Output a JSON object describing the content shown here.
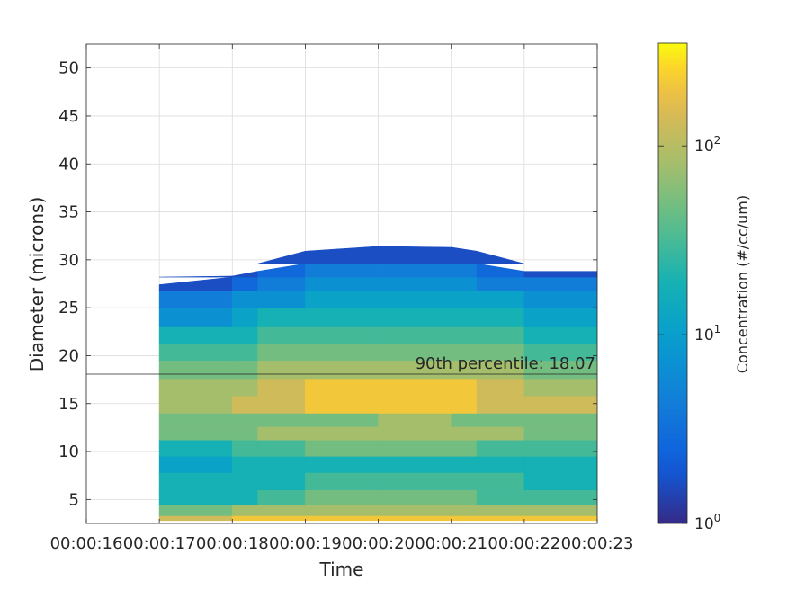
{
  "chart_data": {
    "type": "heatmap",
    "subtype": "filled-contour",
    "xlabel": "Time",
    "ylabel": "Diameter (microns)",
    "x_tick_labels": [
      "00:00:16",
      "00:00:17",
      "00:00:18",
      "00:00:19",
      "00:00:20",
      "00:00:21",
      "00:00:22",
      "00:00:23"
    ],
    "x_tick_values": [
      16,
      17,
      18,
      19,
      20,
      21,
      22,
      23
    ],
    "xlim": [
      16,
      23
    ],
    "y_tick_labels": [
      "5",
      "10",
      "15",
      "20",
      "25",
      "30",
      "35",
      "40",
      "45",
      "50"
    ],
    "y_tick_values": [
      5,
      10,
      15,
      20,
      25,
      30,
      35,
      40,
      45,
      50
    ],
    "ylim": [
      2.5,
      52.5
    ],
    "grid": true,
    "colorbar": {
      "label": "Concentration (#/cc/um)",
      "scale": "log",
      "range": [
        1,
        350
      ],
      "tick_labels": [
        "10^0",
        "10^1",
        "10^2"
      ],
      "tick_values": [
        1,
        10,
        100
      ],
      "colormap": "parula"
    },
    "annotation": {
      "text": "90th percentile: 18.07",
      "y": 18.07
    },
    "times": [
      17,
      18,
      18.35,
      19,
      20,
      21,
      21.35,
      22,
      23
    ],
    "upper_edge_diameter": [
      27.4,
      28.3,
      28.8,
      30.9,
      31.4,
      31.3,
      30.9,
      28.8,
      28.8
    ],
    "bands": [
      {
        "y": [
          2.8,
          3.3
        ],
        "concentration": [
          130,
          170,
          180,
          220,
          240,
          240,
          220,
          200,
          180
        ]
      },
      {
        "y": [
          3.3,
          4.5
        ],
        "concentration": [
          55,
          65,
          70,
          90,
          100,
          100,
          90,
          75,
          60
        ]
      },
      {
        "y": [
          4.5,
          6.0
        ],
        "concentration": [
          20,
          22,
          25,
          45,
          48,
          48,
          45,
          30,
          22
        ]
      },
      {
        "y": [
          6.0,
          7.8
        ],
        "concentration": [
          16,
          18,
          20,
          28,
          32,
          35,
          30,
          22,
          18
        ]
      },
      {
        "y": [
          7.8,
          9.5
        ],
        "concentration": [
          12,
          14,
          16,
          20,
          22,
          22,
          20,
          16,
          14
        ]
      },
      {
        "y": [
          9.5,
          11.2
        ],
        "concentration": [
          20,
          25,
          28,
          38,
          42,
          42,
          38,
          30,
          25
        ]
      },
      {
        "y": [
          11.2,
          12.6
        ],
        "concentration": [
          40,
          55,
          60,
          80,
          90,
          90,
          80,
          65,
          50
        ]
      },
      {
        "y": [
          12.6,
          14.0
        ],
        "concentration": [
          35,
          45,
          50,
          60,
          65,
          65,
          60,
          50,
          42
        ]
      },
      {
        "y": [
          14.0,
          15.8
        ],
        "concentration": [
          70,
          110,
          130,
          170,
          185,
          185,
          170,
          140,
          100
        ]
      },
      {
        "y": [
          15.8,
          17.6
        ],
        "concentration": [
          60,
          90,
          110,
          160,
          180,
          180,
          160,
          120,
          80
        ]
      },
      {
        "y": [
          17.6,
          19.5
        ],
        "concentration": [
          40,
          60,
          65,
          90,
          95,
          95,
          85,
          70,
          55
        ]
      },
      {
        "y": [
          19.5,
          21.2
        ],
        "concentration": [
          25,
          30,
          35,
          45,
          50,
          50,
          45,
          38,
          30
        ]
      },
      {
        "y": [
          21.2,
          23.0
        ],
        "concentration": [
          15,
          18,
          22,
          30,
          35,
          35,
          30,
          25,
          18
        ]
      },
      {
        "y": [
          23.0,
          25.0
        ],
        "concentration": [
          7,
          9,
          12,
          18,
          20,
          20,
          18,
          14,
          10
        ]
      },
      {
        "y": [
          25.0,
          26.8
        ],
        "concentration": [
          3,
          5,
          7,
          11,
          12,
          12,
          11,
          8,
          6
        ]
      },
      {
        "y": [
          26.8,
          28.2
        ],
        "concentration": [
          1.6,
          2.5,
          3.5,
          6,
          7,
          7,
          6,
          4,
          3
        ]
      },
      {
        "y": [
          28.2,
          29.6
        ],
        "concentration": [
          1.2,
          1.5,
          2,
          3.5,
          4,
          4,
          3.5,
          2.2,
          1.5
        ]
      },
      {
        "y": [
          29.6,
          31.4
        ],
        "concentration": [
          1.0,
          1.0,
          1.1,
          1.5,
          2,
          2,
          1.5,
          1.1,
          1.0
        ]
      }
    ]
  }
}
